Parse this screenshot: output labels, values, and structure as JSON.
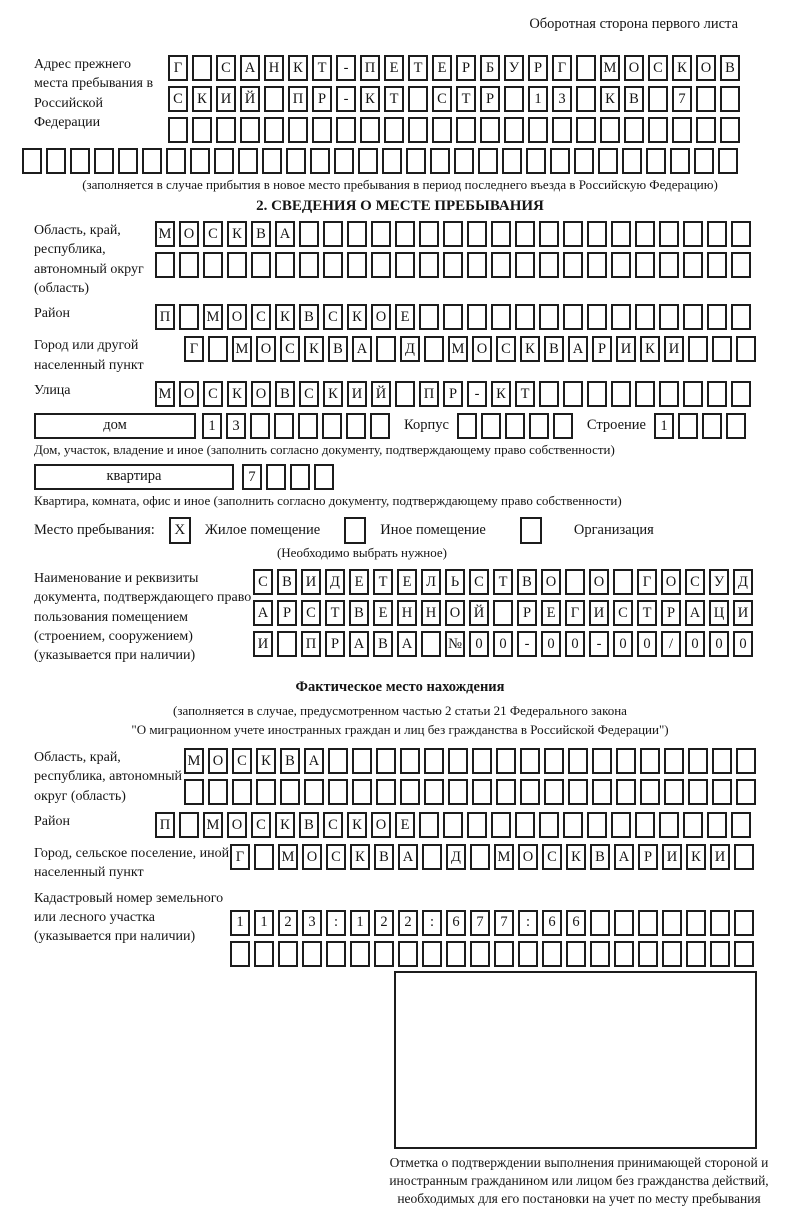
{
  "page": {
    "header_note": "Оборотная сторона первого листа"
  },
  "prev_address": {
    "label": "Адрес прежнего места пребывания в Российской Федерации",
    "rows": [
      {
        "text": "Г САНКТ-ПЕТЕРБУРГ МОСКОВ",
        "len": 24
      },
      {
        "text": "СКИЙ ПР-КТ СТР 13 КВ 7",
        "len": 24
      },
      {
        "text": "",
        "len": 24
      }
    ],
    "full_row": {
      "text": "",
      "len": 30
    },
    "note": "(заполняется в случае прибытия в новое место пребывания в период последнего въезда в Российскую Федерацию)"
  },
  "section2": {
    "title": "2. СВЕДЕНИЯ О МЕСТЕ ПРЕБЫВАНИЯ",
    "region": {
      "label": "Область, край, республика, автономный округ (область)",
      "rows": [
        {
          "text": "МОСКВА",
          "len": 25
        },
        {
          "text": "",
          "len": 25
        }
      ]
    },
    "district": {
      "label": "Район",
      "rows": [
        {
          "text": "П МОСКВСКОЕ",
          "len": 25
        }
      ]
    },
    "city": {
      "label": "Город или другой населенный пункт",
      "rows": [
        {
          "text": "Г МОСКВА Д МОСКВАРИКИ",
          "len": 24
        }
      ]
    },
    "street": {
      "label": "Улица",
      "rows": [
        {
          "text": "МОСКОВСКИЙ ПР-КТ",
          "len": 25
        }
      ]
    },
    "house": {
      "box_label": "дом",
      "cells": {
        "text": "13",
        "len": 8
      },
      "korpus_label": "Корпус",
      "korpus_cells": {
        "text": "",
        "len": 5
      },
      "stroenie_label": "Строение",
      "stroenie_cells": {
        "text": "1",
        "len": 4
      },
      "note": "Дом, участок, владение и иное (заполнить согласно документу, подтверждающему право собственности)"
    },
    "apartment": {
      "box_label": "квартира",
      "cells": {
        "text": "7",
        "len": 4
      },
      "note": "Квартира, комната, офис и иное (заполнить согласно документу, подтверждающему право собственности)"
    },
    "stay_type": {
      "label": "Место пребывания:",
      "options": [
        {
          "label": "Жилое помещение",
          "mark": "X"
        },
        {
          "label": "Иное помещение",
          "mark": ""
        },
        {
          "label": "Организация",
          "mark": ""
        }
      ],
      "note": "(Необходимо выбрать нужное)"
    },
    "document": {
      "label": "Наименование и реквизиты документа, подтверждающего право пользования помещением (строением, сооружением) (указывается при наличии)",
      "rows": [
        {
          "text": "СВИДЕТЕЛЬСТВО О ГОСУД",
          "len": 21
        },
        {
          "text": "АРСТВЕННОЙ РЕГИСТРАЦИ",
          "len": 21
        },
        {
          "text": "И ПРАВА №00-00-00/000",
          "len": 21
        }
      ]
    }
  },
  "actual_location": {
    "title": "Фактическое место нахождения",
    "note_line1": "(заполняется в случае, предусмотренном частью 2 статьи 21 Федерального закона",
    "note_line2": "\"О миграционном учете иностранных граждан и лиц без гражданства в Российской Федерации\")",
    "region": {
      "label": "Область, край, республика, автономный округ (область)",
      "rows": [
        {
          "text": "МОСКВА",
          "len": 24
        },
        {
          "text": "",
          "len": 24
        }
      ]
    },
    "district": {
      "label": "Район",
      "rows": [
        {
          "text": "П МОСКВСКОЕ",
          "len": 25
        }
      ]
    },
    "city": {
      "label": "Город, сельское поселение, иной населенный пункт",
      "rows": [
        {
          "text": "Г МОСКВА Д МОСКВАРИКИ",
          "len": 22
        }
      ]
    },
    "cadastral": {
      "label": "Кадастровый номер земельного или лесного участка (указывается при наличии)",
      "rows": [
        {
          "text": "1123:122:677:66",
          "len": 22
        },
        {
          "text": "",
          "len": 22
        }
      ]
    }
  },
  "stamp": {
    "caption": "Отметка о подтверждении выполнения принимающей стороной и иностранным гражданином или лицом без гражданства действий, необходимых для его постановки на учет по месту пребывания"
  }
}
